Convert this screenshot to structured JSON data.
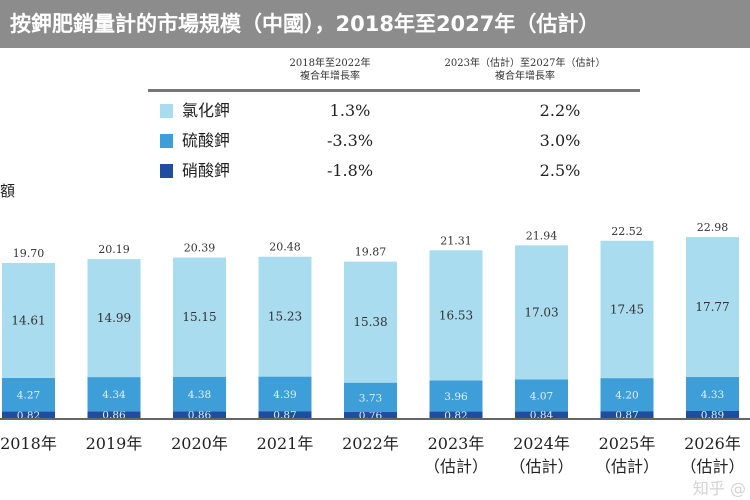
{
  "title": "按鉀肥銷量計的市場規模（中國），2018年至2027年（估計）",
  "table": {
    "col1_header": [
      "2018年至2022年",
      "複合年增長率"
    ],
    "col2_header": [
      "2023年（估計）至2027年（估計）",
      "複合年增長率"
    ],
    "rows": [
      {
        "name": "氯化鉀",
        "cagr1": "1.3%",
        "cagr2": "2.2%",
        "color": "#aadcef"
      },
      {
        "name": "硫酸鉀",
        "cagr1": "-3.3%",
        "cagr2": "3.0%",
        "color": "#3e9fd8"
      },
      {
        "name": "硝酸鉀",
        "cagr1": "-1.8%",
        "cagr2": "2.5%",
        "color": "#1f4da0"
      }
    ]
  },
  "ylabel_fragment": "額",
  "watermark": "知乎 @",
  "chart_data": {
    "type": "bar",
    "stacked": true,
    "categories": [
      "2018年",
      "2019年",
      "2020年",
      "2021年",
      "2022年",
      "2023年（估計）",
      "2024年（估計）",
      "2025年（估計）",
      "2026年（估計）"
    ],
    "series": [
      {
        "name": "硝酸鉀",
        "values": [
          0.82,
          0.86,
          0.86,
          0.87,
          0.76,
          0.82,
          0.84,
          0.87,
          0.89
        ],
        "color": "#1f4da0"
      },
      {
        "name": "硫酸鉀",
        "values": [
          4.27,
          4.34,
          4.38,
          4.39,
          3.73,
          3.96,
          4.07,
          4.2,
          4.33
        ],
        "color": "#3e9fd8"
      },
      {
        "name": "氯化鉀",
        "values": [
          14.61,
          14.99,
          15.15,
          15.23,
          15.38,
          16.53,
          17.03,
          17.45,
          17.77
        ],
        "color": "#aadcef"
      }
    ],
    "totals": [
      19.7,
      20.19,
      20.39,
      20.48,
      19.87,
      21.31,
      21.94,
      22.52,
      22.98
    ],
    "grid": false
  }
}
